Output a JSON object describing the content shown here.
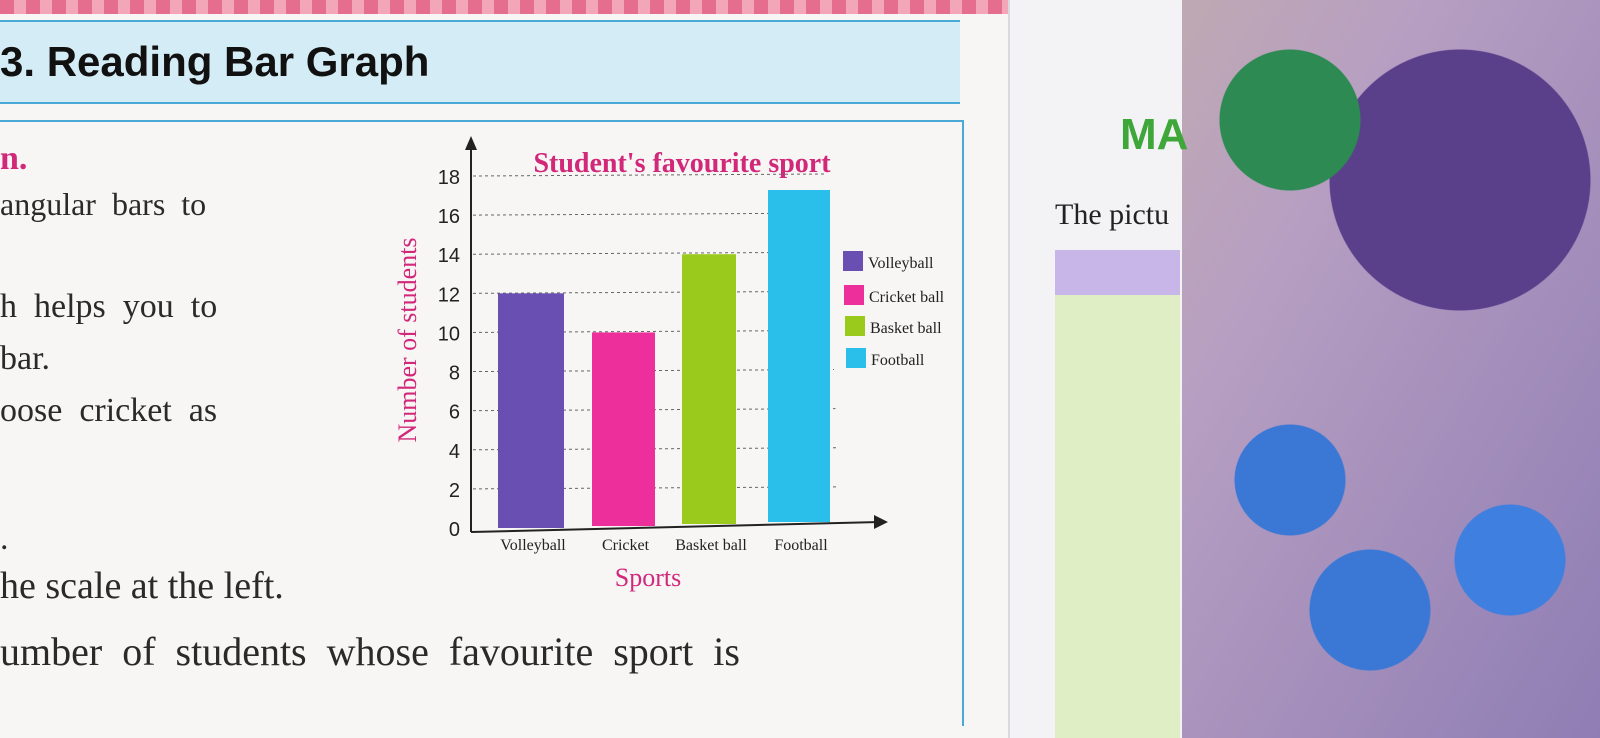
{
  "page": {
    "title": "3. Reading Bar Graph",
    "left_fragments": [
      "n.",
      "angular  bars  to",
      "h  helps  you  to",
      "bar.",
      "oose  cricket  as",
      ".",
      "he scale at the left.",
      "umber  of  students  whose  favourite  sport  is"
    ]
  },
  "right_page": {
    "logo_text": "MA",
    "text": "The pictu"
  },
  "chart_data": {
    "type": "bar",
    "title": "Student's favourite sport",
    "xlabel": "Sports",
    "ylabel": "Number of students",
    "categories": [
      "Volleyball",
      "Cricket",
      "Basket ball",
      "Football"
    ],
    "values": [
      12,
      10,
      14,
      18
    ],
    "colors": [
      "#6a4fb3",
      "#ec2f9b",
      "#9acb1c",
      "#29bfea"
    ],
    "ylim": [
      0,
      18
    ],
    "yticks": [
      "0",
      "2",
      "4",
      "6",
      "8",
      "10",
      "12",
      "14",
      "16",
      "18"
    ],
    "grid": true,
    "legend": {
      "position": "right",
      "entries": [
        "Volleyball",
        "Cricket ball",
        "Basket ball",
        "Football"
      ]
    }
  }
}
